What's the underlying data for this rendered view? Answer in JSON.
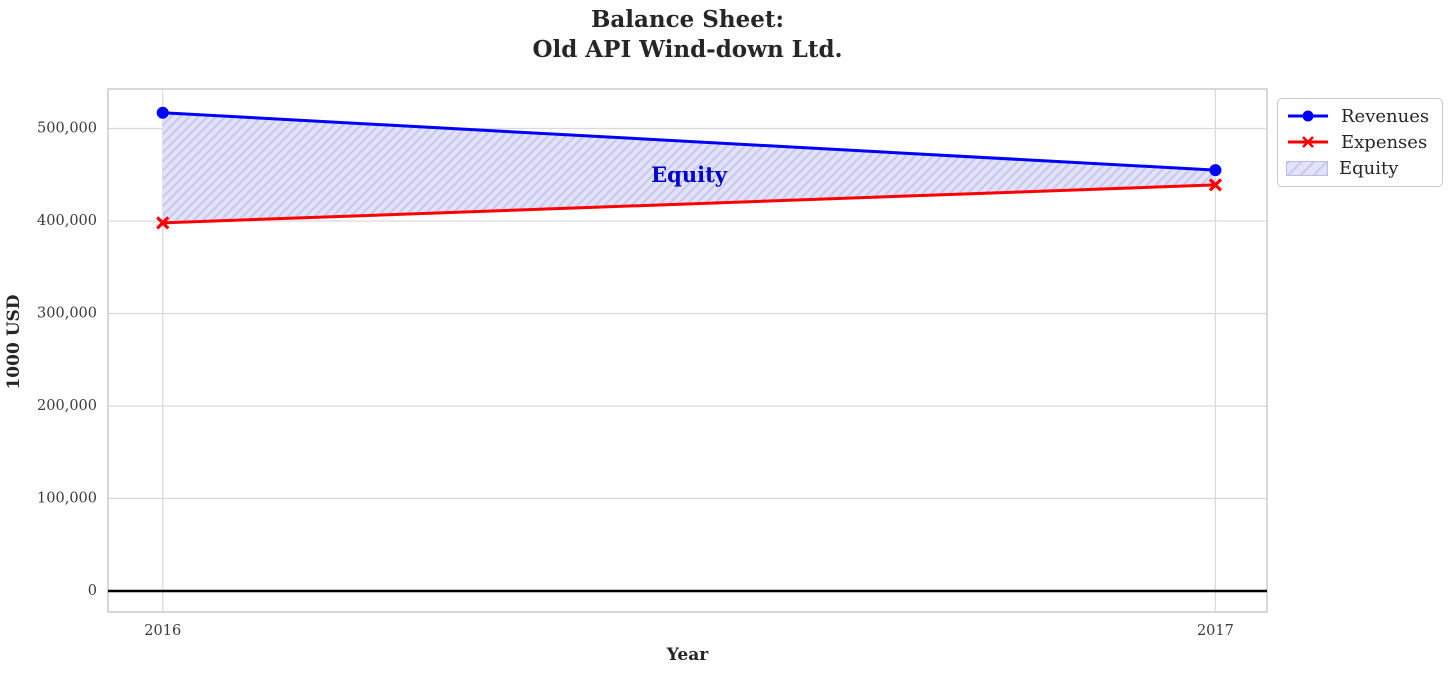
{
  "title": "Balance Sheet:\nOld API Wind-down Ltd.",
  "chart_data": {
    "type": "line",
    "title": "Balance Sheet: Old API Wind-down Ltd.",
    "x": [
      2016,
      2017
    ],
    "series": [
      {
        "name": "Revenues",
        "values": [
          517000,
          455000
        ],
        "color": "#0000ff",
        "marker": "circle"
      },
      {
        "name": "Expenses",
        "values": [
          398000,
          439000
        ],
        "color": "#ff0000",
        "marker": "x"
      }
    ],
    "fill_between": {
      "name": "Equity",
      "between": [
        "Revenues",
        "Expenses"
      ],
      "fill_color": "#e3e3f8",
      "hatch_color": "#c8c8f0",
      "hatch": "/"
    },
    "annotation": {
      "text": "Equity",
      "x": 2016.5,
      "y": 450000,
      "color": "#0000cc"
    },
    "xlabel": "Year",
    "ylabel": "1000 USD",
    "xticks": [
      2016,
      2017
    ],
    "yticks": [
      0,
      100000,
      200000,
      300000,
      400000,
      500000
    ],
    "xlim": [
      2015.948,
      2017.049
    ],
    "ylim": [
      -22700,
      542700
    ],
    "grid": true,
    "grid_color": "#d9d9d9",
    "border_color": "#cccccc",
    "tick_color": "#3b3b3b",
    "zero_line": true,
    "legend": {
      "position": "upper-right-outside",
      "entries": [
        "Revenues",
        "Expenses",
        "Equity"
      ]
    }
  }
}
